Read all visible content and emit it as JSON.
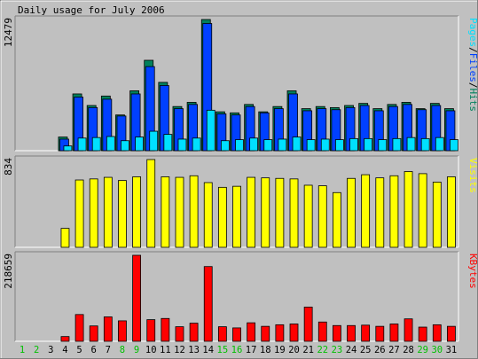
{
  "colors": {
    "background": "#c0c0c0",
    "hits": "#00805c",
    "files": "#0040ff",
    "pages": "#00e0ff",
    "visits": "#ffff00",
    "kbytes": "#ff0000",
    "weekend_label": "#00c000",
    "weekday_label": "#000000"
  },
  "chart_data": {
    "type": "bar",
    "title": "Daily usage for July 2006",
    "categories": [
      "1",
      "2",
      "3",
      "4",
      "5",
      "6",
      "7",
      "8",
      "9",
      "10",
      "11",
      "12",
      "13",
      "14",
      "15",
      "16",
      "17",
      "18",
      "19",
      "20",
      "21",
      "22",
      "23",
      "24",
      "25",
      "26",
      "27",
      "28",
      "29",
      "30",
      "31"
    ],
    "weekend_days": [
      "1",
      "2",
      "8",
      "9",
      "15",
      "16",
      "22",
      "23",
      "29",
      "30"
    ],
    "panels": [
      {
        "name": "traffic",
        "y_max_label": "12479",
        "ylim": [
          0,
          12479
        ],
        "legend": [
          {
            "text": "Pages",
            "color": "#00e0ff"
          },
          {
            "text": "/",
            "color": "#000000"
          },
          {
            "text": "Files",
            "color": "#0040ff"
          },
          {
            "text": "/",
            "color": "#000000"
          },
          {
            "text": "Hits",
            "color": "#00805c"
          }
        ],
        "series": [
          {
            "name": "Hits",
            "color": "#00805c",
            "values": [
              0,
              0,
              0,
              1300,
              5400,
              4300,
              5200,
              3400,
              5700,
              8600,
              6500,
              4200,
              4600,
              12479,
              3700,
              3600,
              4400,
              3700,
              4200,
              5700,
              4000,
              4200,
              4100,
              4300,
              4500,
              4000,
              4400,
              4600,
              4000,
              4500,
              4000
            ]
          },
          {
            "name": "Files",
            "color": "#0040ff",
            "values": [
              0,
              0,
              0,
              1100,
              5100,
              4100,
              4900,
              3300,
              5400,
              8000,
              6200,
              4000,
              4400,
              12100,
              3500,
              3400,
              4200,
              3600,
              4000,
              5400,
              3800,
              4000,
              3900,
              4100,
              4300,
              3800,
              4200,
              4400,
              3900,
              4300,
              3800
            ]
          },
          {
            "name": "Pages",
            "color": "#00e0ff",
            "values": [
              0,
              0,
              0,
              450,
              1200,
              1250,
              1350,
              950,
              1300,
              1850,
              1550,
              1100,
              1200,
              3850,
              950,
              1050,
              1200,
              1050,
              1100,
              1300,
              1050,
              1100,
              1050,
              1150,
              1150,
              1050,
              1150,
              1250,
              1150,
              1250,
              1050
            ]
          }
        ]
      },
      {
        "name": "visits",
        "y_max_label": "834",
        "ylim": [
          0,
          834
        ],
        "legend": [
          {
            "text": "Visits",
            "color": "#ffff00"
          }
        ],
        "series": [
          {
            "name": "Visits",
            "color": "#ffff00",
            "values": [
              0,
              0,
              0,
              180,
              640,
              650,
              665,
              635,
              670,
              834,
              670,
              665,
              680,
              615,
              570,
              580,
              665,
              660,
              655,
              650,
              590,
              585,
              520,
              655,
              690,
              660,
              680,
              720,
              700,
              620,
              670
            ]
          }
        ]
      },
      {
        "name": "kbytes",
        "y_max_label": "218659",
        "ylim": [
          0,
          218659
        ],
        "legend": [
          {
            "text": "KBytes",
            "color": "#ff0000"
          }
        ],
        "series": [
          {
            "name": "KBytes",
            "color": "#ff0000",
            "values": [
              0,
              0,
              0,
              12000,
              68000,
              39000,
              62000,
              52000,
              218659,
              55000,
              58000,
              37000,
              46000,
              190000,
              37000,
              34000,
              47000,
              38000,
              42000,
              44000,
              87000,
              49000,
              40000,
              40000,
              41000,
              38000,
              44000,
              57000,
              36000,
              42000,
              38000
            ]
          }
        ]
      }
    ]
  }
}
